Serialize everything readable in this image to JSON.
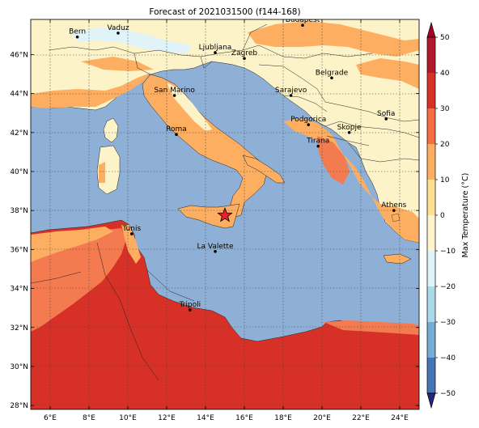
{
  "title": "Forecast of 2021031500 (f144-168)",
  "map": {
    "lon_ticks": [
      "6°E",
      "8°E",
      "10°E",
      "12°E",
      "14°E",
      "16°E",
      "18°E",
      "20°E",
      "22°E",
      "24°E"
    ],
    "lat_ticks": [
      "46°N",
      "44°N",
      "42°N",
      "40°N",
      "38°N",
      "36°N",
      "34°N",
      "32°N",
      "30°N",
      "28°N"
    ],
    "extent": {
      "lon": [
        5,
        25
      ],
      "lat": [
        27.8,
        47.8
      ]
    },
    "gridlines": true,
    "cities": [
      {
        "name": "Bern",
        "lon": 7.4,
        "lat": 46.9
      },
      {
        "name": "Vaduz",
        "lon": 9.5,
        "lat": 47.1
      },
      {
        "name": "Budapest",
        "lon": 19.0,
        "lat": 47.5
      },
      {
        "name": "Ljubljana",
        "lon": 14.5,
        "lat": 46.1
      },
      {
        "name": "Zagreb",
        "lon": 16.0,
        "lat": 45.8
      },
      {
        "name": "Belgrade",
        "lon": 20.5,
        "lat": 44.8
      },
      {
        "name": "San Marino",
        "lon": 12.4,
        "lat": 43.9
      },
      {
        "name": "Sarajevo",
        "lon": 18.4,
        "lat": 43.9
      },
      {
        "name": "Sofia",
        "lon": 23.3,
        "lat": 42.7
      },
      {
        "name": "Podgorica",
        "lon": 19.3,
        "lat": 42.4
      },
      {
        "name": "Skopje",
        "lon": 21.4,
        "lat": 42.0
      },
      {
        "name": "Roma",
        "lon": 12.5,
        "lat": 41.9
      },
      {
        "name": "Tirana",
        "lon": 19.8,
        "lat": 41.3
      },
      {
        "name": "Athens",
        "lon": 23.7,
        "lat": 38.0
      },
      {
        "name": "Tunis",
        "lon": 10.2,
        "lat": 36.8
      },
      {
        "name": "La Valette",
        "lon": 14.5,
        "lat": 35.9
      },
      {
        "name": "Tripoli",
        "lon": 13.2,
        "lat": 32.9
      }
    ],
    "marker": {
      "symbol": "star",
      "lon": 15.0,
      "lat": 37.75,
      "color": "#e8222a"
    }
  },
  "colorbar": {
    "label": "Max Temperature (°C)",
    "ticks": [
      "50",
      "40",
      "30",
      "20",
      "10",
      "0",
      "−10",
      "−20",
      "−30",
      "−40",
      "−50"
    ],
    "colors": [
      "#a50026",
      "#b2182b",
      "#d73027",
      "#f46d43",
      "#fdae61",
      "#fee090",
      "#fff4cc",
      "#e0f3f8",
      "#abd9e9",
      "#74add1",
      "#4575b4",
      "#313695",
      "#24267a"
    ]
  },
  "palette": {
    "sea": "#8fb0d6",
    "t_10_20": "#fdae61",
    "t_20_30": "#f47a50",
    "t_30_40": "#d73027",
    "t_0_10": "#fdf3c8",
    "t_cold": "#e0f3f8",
    "marker": "#e8222a"
  }
}
